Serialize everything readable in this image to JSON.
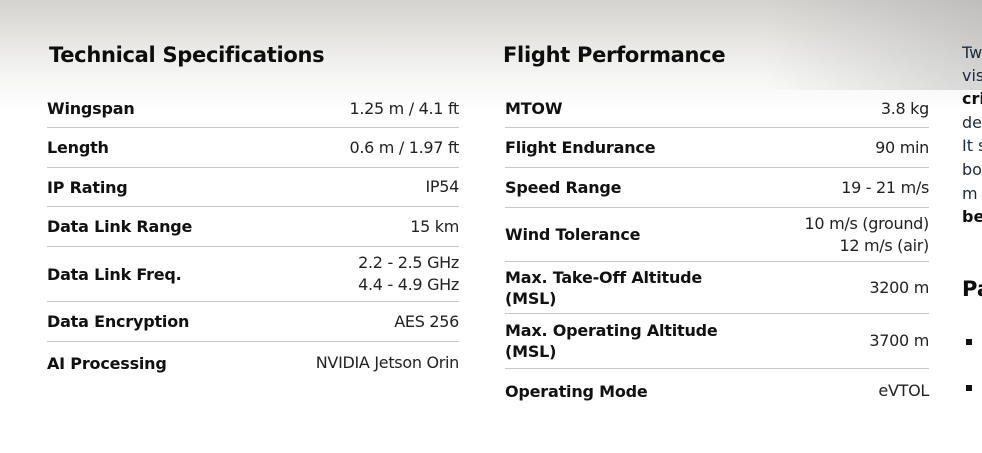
{
  "technical": {
    "title": "Technical Specifications",
    "rows": [
      {
        "label": "Wingspan",
        "value": [
          "1.25 m / 4.1 ft"
        ]
      },
      {
        "label": "Length",
        "value": [
          "0.6 m / 1.97 ft"
        ]
      },
      {
        "label": "IP Rating",
        "value": [
          "IP54"
        ]
      },
      {
        "label": "Data Link Range",
        "value": [
          "15 km"
        ]
      },
      {
        "label": "Data Link Freq.",
        "value": [
          "2.2 - 2.5 GHz",
          "4.4 - 4.9 GHz"
        ]
      },
      {
        "label": "Data Encryption",
        "value": [
          "AES 256"
        ]
      },
      {
        "label": "AI Processing",
        "value": [
          "NVIDIA Jetson Orin"
        ]
      }
    ]
  },
  "flight": {
    "title": "Flight Performance",
    "rows": [
      {
        "label": "MTOW",
        "value": [
          "3.8 kg"
        ]
      },
      {
        "label": "Flight Endurance",
        "value": [
          "90 min"
        ]
      },
      {
        "label": "Speed Range",
        "value": [
          "19 - 21 m/s"
        ]
      },
      {
        "label": "Wind Tolerance",
        "value": [
          "10 m/s (ground)",
          "12 m/s (air)"
        ]
      },
      {
        "label": [
          "Max. Take-Off Altitude",
          "(MSL)"
        ],
        "value": [
          "3200 m"
        ]
      },
      {
        "label": [
          "Max. Operating Altitude",
          "(MSL)"
        ],
        "value": [
          "3700 m"
        ]
      },
      {
        "label": "Operating Mode",
        "value": [
          "eVTOL"
        ]
      }
    ]
  },
  "side": {
    "lines": [
      "Tw",
      "vis",
      "cri",
      "de",
      "It s",
      "bo",
      "m",
      "be"
    ],
    "heading": "Pa"
  }
}
